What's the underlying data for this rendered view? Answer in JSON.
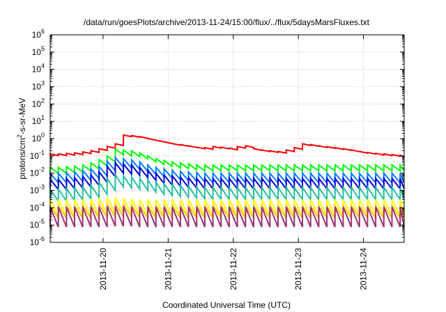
{
  "chart_data": {
    "type": "line",
    "title": "/data/run/goesPlots/archive/2013-11-24/15:00/flux/../flux/5daysMarsFluxes.txt",
    "xlabel": "Coordinated Universal Time (UTC)",
    "ylabel": {
      "base": "protons/cm",
      "sup": "2",
      "rest": "-s-sr-MeV"
    },
    "x_range": [
      "2013-11-19T04:30",
      "2013-11-24T15:00"
    ],
    "x_ticks": [
      "2013-11-20",
      "2013-11-21",
      "2013-11-22",
      "2013-11-23",
      "2013-11-24"
    ],
    "y_scale": "log",
    "ylim": [
      1e-06,
      1000000.0
    ],
    "y_ticks": [
      {
        "base": "10",
        "exp": "-6"
      },
      {
        "base": "10",
        "exp": "-5"
      },
      {
        "base": "10",
        "exp": "-4"
      },
      {
        "base": "10",
        "exp": "-3"
      },
      {
        "base": "10",
        "exp": "-2"
      },
      {
        "base": "10",
        "exp": "-1"
      },
      {
        "base": "10",
        "exp": "0"
      },
      {
        "base": "10",
        "exp": "1"
      },
      {
        "base": "10",
        "exp": "2"
      },
      {
        "base": "10",
        "exp": "3"
      },
      {
        "base": "10",
        "exp": "4"
      },
      {
        "base": "10",
        "exp": "5"
      },
      {
        "base": "10",
        "exp": "6"
      }
    ],
    "grid": true,
    "series": [
      {
        "color": "#ff0000",
        "peak_times": [
          "2013-11-19T04:30",
          "2013-11-19T07:30",
          "2013-11-19T10:30",
          "2013-11-19T13:30",
          "2013-11-19T16:30",
          "2013-11-19T19:30",
          "2013-11-19T22:30",
          "2013-11-20T01:30",
          "2013-11-20T04:30",
          "2013-11-20T07:30",
          "2013-11-20T10:30",
          "2013-11-20T13:30",
          "2013-11-20T16:30",
          "2013-11-20T19:30",
          "2013-11-20T22:30",
          "2013-11-21T01:30",
          "2013-11-21T04:30",
          "2013-11-21T07:30",
          "2013-11-21T10:30",
          "2013-11-21T13:30",
          "2013-11-21T16:30",
          "2013-11-21T19:30",
          "2013-11-21T22:30",
          "2013-11-22T01:30",
          "2013-11-22T04:30",
          "2013-11-22T07:30",
          "2013-11-22T10:30",
          "2013-11-22T13:30",
          "2013-11-22T16:30",
          "2013-11-22T19:30",
          "2013-11-22T22:30",
          "2013-11-23T01:30",
          "2013-11-23T04:30",
          "2013-11-23T07:30",
          "2013-11-23T10:30",
          "2013-11-23T13:30",
          "2013-11-23T16:30",
          "2013-11-23T19:30",
          "2013-11-23T22:30",
          "2013-11-24T01:30",
          "2013-11-24T04:30",
          "2013-11-24T07:30",
          "2013-11-24T10:30",
          "2013-11-24T13:30"
        ],
        "peak_values": [
          0.13,
          0.13,
          0.14,
          0.15,
          0.17,
          0.2,
          0.26,
          0.35,
          0.5,
          1.6,
          1.5,
          1.3,
          1.0,
          0.8,
          0.65,
          0.52,
          0.45,
          0.38,
          0.32,
          0.3,
          0.35,
          0.32,
          0.28,
          0.35,
          0.38,
          0.26,
          0.22,
          0.2,
          0.18,
          0.22,
          0.3,
          0.5,
          0.45,
          0.38,
          0.34,
          0.3,
          0.26,
          0.22,
          0.18,
          0.16,
          0.14,
          0.13,
          0.12,
          0.11
        ],
        "trough_ratio": 0.8
      },
      {
        "color": "#00ff00",
        "peak_times": [
          "2013-11-19T04:30",
          "2013-11-19T07:30",
          "2013-11-19T10:30",
          "2013-11-19T13:30",
          "2013-11-19T16:30",
          "2013-11-19T19:30",
          "2013-11-19T22:30",
          "2013-11-20T01:30",
          "2013-11-20T04:30",
          "2013-11-20T07:30",
          "2013-11-20T10:30",
          "2013-11-20T13:30",
          "2013-11-20T16:30",
          "2013-11-20T19:30",
          "2013-11-20T22:30",
          "2013-11-21T01:30",
          "2013-11-21T04:30",
          "2013-11-21T07:30",
          "2013-11-21T10:30",
          "2013-11-21T13:30",
          "2013-11-21T16:30",
          "2013-11-21T19:30",
          "2013-11-21T22:30",
          "2013-11-22T01:30",
          "2013-11-22T04:30",
          "2013-11-22T07:30",
          "2013-11-22T10:30",
          "2013-11-22T13:30",
          "2013-11-22T16:30",
          "2013-11-22T19:30",
          "2013-11-22T22:30",
          "2013-11-23T01:30",
          "2013-11-23T04:30",
          "2013-11-23T07:30",
          "2013-11-23T10:30",
          "2013-11-23T13:30",
          "2013-11-23T16:30",
          "2013-11-23T19:30",
          "2013-11-23T22:30",
          "2013-11-24T01:30",
          "2013-11-24T04:30",
          "2013-11-24T07:30",
          "2013-11-24T10:30",
          "2013-11-24T13:30"
        ],
        "peak_values": [
          0.022,
          0.022,
          0.024,
          0.026,
          0.03,
          0.04,
          0.06,
          0.1,
          0.25,
          0.22,
          0.2,
          0.15,
          0.1,
          0.07,
          0.055,
          0.045,
          0.04,
          0.035,
          0.03,
          0.03,
          0.03,
          0.03,
          0.03,
          0.03,
          0.03,
          0.03,
          0.03,
          0.03,
          0.03,
          0.03,
          0.03,
          0.03,
          0.03,
          0.03,
          0.03,
          0.03,
          0.03,
          0.03,
          0.03,
          0.03,
          0.03,
          0.03,
          0.03,
          0.03
        ],
        "trough_ratio": 0.45
      },
      {
        "color": "#0080ff",
        "peak_times": [
          "2013-11-19T04:30",
          "2013-11-19T07:30",
          "2013-11-19T10:30",
          "2013-11-19T13:30",
          "2013-11-19T16:30",
          "2013-11-19T19:30",
          "2013-11-19T22:30",
          "2013-11-20T01:30",
          "2013-11-20T04:30",
          "2013-11-20T07:30",
          "2013-11-20T10:30",
          "2013-11-20T13:30",
          "2013-11-20T16:30",
          "2013-11-20T19:30",
          "2013-11-20T22:30",
          "2013-11-21T01:30",
          "2013-11-21T04:30",
          "2013-11-21T07:30",
          "2013-11-21T10:30",
          "2013-11-21T13:30",
          "2013-11-21T16:30",
          "2013-11-21T19:30",
          "2013-11-21T22:30",
          "2013-11-22T01:30",
          "2013-11-22T04:30",
          "2013-11-22T07:30",
          "2013-11-22T10:30",
          "2013-11-22T13:30",
          "2013-11-22T16:30",
          "2013-11-22T19:30",
          "2013-11-22T22:30",
          "2013-11-23T01:30",
          "2013-11-23T04:30",
          "2013-11-23T07:30",
          "2013-11-23T10:30",
          "2013-11-23T13:30",
          "2013-11-23T16:30",
          "2013-11-23T19:30",
          "2013-11-23T22:30",
          "2013-11-24T01:30",
          "2013-11-24T04:30",
          "2013-11-24T07:30",
          "2013-11-24T10:30",
          "2013-11-24T13:30"
        ],
        "peak_values": [
          0.01,
          0.01,
          0.011,
          0.012,
          0.014,
          0.018,
          0.025,
          0.05,
          0.08,
          0.07,
          0.06,
          0.045,
          0.03,
          0.022,
          0.018,
          0.015,
          0.013,
          0.012,
          0.011,
          0.01,
          0.01,
          0.01,
          0.01,
          0.01,
          0.01,
          0.01,
          0.01,
          0.01,
          0.01,
          0.01,
          0.01,
          0.01,
          0.01,
          0.01,
          0.01,
          0.01,
          0.01,
          0.01,
          0.01,
          0.01,
          0.01,
          0.01,
          0.01,
          0.01
        ],
        "trough_ratio": 0.28
      },
      {
        "color": "#0000d8",
        "peak_times": [
          "2013-11-19T04:30",
          "2013-11-19T07:30",
          "2013-11-19T10:30",
          "2013-11-19T13:30",
          "2013-11-19T16:30",
          "2013-11-19T19:30",
          "2013-11-19T22:30",
          "2013-11-20T01:30",
          "2013-11-20T04:30",
          "2013-11-20T07:30",
          "2013-11-20T10:30",
          "2013-11-20T13:30",
          "2013-11-20T16:30",
          "2013-11-20T19:30",
          "2013-11-20T22:30",
          "2013-11-21T01:30",
          "2013-11-21T04:30",
          "2013-11-21T07:30",
          "2013-11-21T10:30",
          "2013-11-21T13:30",
          "2013-11-21T16:30",
          "2013-11-21T19:30",
          "2013-11-21T22:30",
          "2013-11-22T01:30",
          "2013-11-22T04:30",
          "2013-11-22T07:30",
          "2013-11-22T10:30",
          "2013-11-22T13:30",
          "2013-11-22T16:30",
          "2013-11-22T19:30",
          "2013-11-22T22:30",
          "2013-11-23T01:30",
          "2013-11-23T04:30",
          "2013-11-23T07:30",
          "2013-11-23T10:30",
          "2013-11-23T13:30",
          "2013-11-23T16:30",
          "2013-11-23T19:30",
          "2013-11-23T22:30",
          "2013-11-24T01:30",
          "2013-11-24T04:30",
          "2013-11-24T07:30",
          "2013-11-24T10:30",
          "2013-11-24T13:30"
        ],
        "peak_values": [
          0.0045,
          0.0045,
          0.005,
          0.0055,
          0.0065,
          0.008,
          0.012,
          0.025,
          0.04,
          0.035,
          0.03,
          0.022,
          0.015,
          0.01,
          0.008,
          0.007,
          0.006,
          0.0055,
          0.005,
          0.005,
          0.005,
          0.005,
          0.005,
          0.005,
          0.005,
          0.005,
          0.005,
          0.005,
          0.005,
          0.005,
          0.005,
          0.005,
          0.005,
          0.005,
          0.005,
          0.005,
          0.005,
          0.005,
          0.005,
          0.005,
          0.005,
          0.005,
          0.005,
          0.005
        ],
        "trough_ratio": 0.25
      },
      {
        "color": "#20c0a0",
        "peak_times": [
          "2013-11-19T04:30",
          "2013-11-19T07:30",
          "2013-11-19T10:30",
          "2013-11-19T13:30",
          "2013-11-19T16:30",
          "2013-11-19T19:30",
          "2013-11-19T22:30",
          "2013-11-20T01:30",
          "2013-11-20T04:30",
          "2013-11-20T07:30",
          "2013-11-20T10:30",
          "2013-11-20T13:30",
          "2013-11-20T16:30",
          "2013-11-20T19:30",
          "2013-11-20T22:30",
          "2013-11-21T01:30",
          "2013-11-21T04:30",
          "2013-11-21T07:30",
          "2013-11-21T10:30",
          "2013-11-21T13:30",
          "2013-11-21T16:30",
          "2013-11-21T19:30",
          "2013-11-21T22:30",
          "2013-11-22T01:30",
          "2013-11-22T04:30",
          "2013-11-22T07:30",
          "2013-11-22T10:30",
          "2013-11-22T13:30",
          "2013-11-22T16:30",
          "2013-11-22T19:30",
          "2013-11-22T22:30",
          "2013-11-23T01:30",
          "2013-11-23T04:30",
          "2013-11-23T07:30",
          "2013-11-23T10:30",
          "2013-11-23T13:30",
          "2013-11-23T16:30",
          "2013-11-23T19:30",
          "2013-11-23T22:30",
          "2013-11-24T01:30",
          "2013-11-24T04:30",
          "2013-11-24T07:30",
          "2013-11-24T10:30",
          "2013-11-24T13:30"
        ],
        "peak_values": [
          0.0012,
          0.0012,
          0.0013,
          0.0014,
          0.0016,
          0.002,
          0.003,
          0.005,
          0.008,
          0.007,
          0.006,
          0.005,
          0.004,
          0.003,
          0.0025,
          0.0022,
          0.002,
          0.0018,
          0.0016,
          0.0015,
          0.0015,
          0.0015,
          0.0015,
          0.0015,
          0.0015,
          0.0015,
          0.0015,
          0.0015,
          0.0015,
          0.0015,
          0.0015,
          0.0015,
          0.0015,
          0.0015,
          0.0015,
          0.0015,
          0.0015,
          0.0015,
          0.0015,
          0.0015,
          0.0015,
          0.0015,
          0.0015,
          0.0015
        ],
        "trough_ratio": 0.2
      },
      {
        "color": "#ffff00",
        "peak_times": [
          "2013-11-19T04:30",
          "2013-11-19T07:30",
          "2013-11-19T10:30",
          "2013-11-19T13:30",
          "2013-11-19T16:30",
          "2013-11-19T19:30",
          "2013-11-19T22:30",
          "2013-11-20T01:30",
          "2013-11-20T04:30",
          "2013-11-20T07:30",
          "2013-11-20T10:30",
          "2013-11-20T13:30",
          "2013-11-20T16:30",
          "2013-11-20T19:30",
          "2013-11-20T22:30",
          "2013-11-21T01:30",
          "2013-11-21T04:30",
          "2013-11-21T07:30",
          "2013-11-21T10:30",
          "2013-11-21T13:30",
          "2013-11-21T16:30",
          "2013-11-21T19:30",
          "2013-11-21T22:30",
          "2013-11-22T01:30",
          "2013-11-22T04:30",
          "2013-11-22T07:30",
          "2013-11-22T10:30",
          "2013-11-22T13:30",
          "2013-11-22T16:30",
          "2013-11-22T19:30",
          "2013-11-22T22:30",
          "2013-11-23T01:30",
          "2013-11-23T04:30",
          "2013-11-23T07:30",
          "2013-11-23T10:30",
          "2013-11-23T13:30",
          "2013-11-23T16:30",
          "2013-11-23T19:30",
          "2013-11-23T22:30",
          "2013-11-24T01:30",
          "2013-11-24T04:30",
          "2013-11-24T07:30",
          "2013-11-24T10:30",
          "2013-11-24T13:30"
        ],
        "peak_values": [
          0.0003,
          0.0003,
          0.0003,
          0.0003,
          0.0003,
          0.00032,
          0.00035,
          0.0004,
          0.0004,
          0.00035,
          0.00032,
          0.0003,
          0.0003,
          0.0003,
          0.0003,
          0.0003,
          0.0003,
          0.0003,
          0.0003,
          0.0003,
          0.0003,
          0.0003,
          0.0003,
          0.0003,
          0.0003,
          0.0003,
          0.0003,
          0.0003,
          0.0003,
          0.0003,
          0.0003,
          0.0003,
          0.0003,
          0.0003,
          0.0003,
          0.0003,
          0.0003,
          0.0003,
          0.0003,
          0.0003,
          0.0003,
          0.0003,
          0.0003,
          0.0003
        ],
        "trough_ratio": 0.12
      },
      {
        "color": "#ffbf00",
        "peak_times": [
          "2013-11-19T04:30",
          "2013-11-19T07:30",
          "2013-11-19T10:30",
          "2013-11-19T13:30",
          "2013-11-19T16:30",
          "2013-11-19T19:30",
          "2013-11-19T22:30",
          "2013-11-20T01:30",
          "2013-11-20T04:30",
          "2013-11-20T07:30",
          "2013-11-20T10:30",
          "2013-11-20T13:30",
          "2013-11-20T16:30",
          "2013-11-20T19:30",
          "2013-11-20T22:30",
          "2013-11-21T01:30",
          "2013-11-21T04:30",
          "2013-11-21T07:30",
          "2013-11-21T10:30",
          "2013-11-21T13:30",
          "2013-11-21T16:30",
          "2013-11-21T19:30",
          "2013-11-21T22:30",
          "2013-11-22T01:30",
          "2013-11-22T04:30",
          "2013-11-22T07:30",
          "2013-11-22T10:30",
          "2013-11-22T13:30",
          "2013-11-22T16:30",
          "2013-11-22T19:30",
          "2013-11-22T22:30",
          "2013-11-23T01:30",
          "2013-11-23T04:30",
          "2013-11-23T07:30",
          "2013-11-23T10:30",
          "2013-11-23T13:30",
          "2013-11-23T16:30",
          "2013-11-23T19:30",
          "2013-11-23T22:30",
          "2013-11-24T01:30",
          "2013-11-24T04:30",
          "2013-11-24T07:30",
          "2013-11-24T10:30",
          "2013-11-24T13:30"
        ],
        "peak_values": [
          0.00013,
          0.00013,
          0.00013,
          0.00013,
          0.00013,
          0.00014,
          0.00015,
          0.00016,
          0.00016,
          0.00015,
          0.00014,
          0.00013,
          0.00013,
          0.00013,
          0.00013,
          0.00013,
          0.00013,
          0.00013,
          0.00013,
          0.00013,
          0.00013,
          0.00013,
          0.00013,
          0.00013,
          0.00013,
          0.00013,
          0.00013,
          0.00013,
          0.00013,
          0.00013,
          0.00013,
          0.00013,
          0.00013,
          0.00013,
          0.00013,
          0.00013,
          0.00013,
          0.00013,
          0.00013,
          0.00013,
          0.00013,
          0.00013,
          0.00013,
          0.00013
        ],
        "trough_ratio": 0.2
      },
      {
        "color": "#a03070",
        "peak_times": [
          "2013-11-19T04:30",
          "2013-11-19T07:30",
          "2013-11-19T10:30",
          "2013-11-19T13:30",
          "2013-11-19T16:30",
          "2013-11-19T19:30",
          "2013-11-19T22:30",
          "2013-11-20T01:30",
          "2013-11-20T04:30",
          "2013-11-20T07:30",
          "2013-11-20T10:30",
          "2013-11-20T13:30",
          "2013-11-20T16:30",
          "2013-11-20T19:30",
          "2013-11-20T22:30",
          "2013-11-21T01:30",
          "2013-11-21T04:30",
          "2013-11-21T07:30",
          "2013-11-21T10:30",
          "2013-11-21T13:30",
          "2013-11-21T16:30",
          "2013-11-21T19:30",
          "2013-11-21T22:30",
          "2013-11-22T01:30",
          "2013-11-22T04:30",
          "2013-11-22T07:30",
          "2013-11-22T10:30",
          "2013-11-22T13:30",
          "2013-11-22T16:30",
          "2013-11-22T19:30",
          "2013-11-22T22:30",
          "2013-11-23T01:30",
          "2013-11-23T04:30",
          "2013-11-23T07:30",
          "2013-11-23T10:30",
          "2013-11-23T13:30",
          "2013-11-23T16:30",
          "2013-11-23T19:30",
          "2013-11-23T22:30",
          "2013-11-24T01:30",
          "2013-11-24T04:30",
          "2013-11-24T07:30",
          "2013-11-24T10:30",
          "2013-11-24T13:30"
        ],
        "peak_values": [
          0.00011,
          0.00011,
          0.00011,
          0.00011,
          0.00011,
          0.00011,
          0.00011,
          0.00012,
          0.00012,
          0.00012,
          0.00011,
          0.00011,
          0.00011,
          0.00011,
          0.00011,
          0.00011,
          0.00011,
          0.00011,
          0.00011,
          0.00011,
          0.00011,
          0.00011,
          0.00011,
          0.00011,
          0.00011,
          0.00011,
          0.00011,
          0.00011,
          0.00011,
          0.00011,
          0.00011,
          0.00011,
          0.00011,
          0.00011,
          0.00011,
          0.00011,
          0.00011,
          0.00011,
          0.00011,
          0.00011,
          0.00011,
          0.00011,
          0.00011,
          0.00011
        ],
        "trough_ratio": 0.07
      }
    ]
  }
}
